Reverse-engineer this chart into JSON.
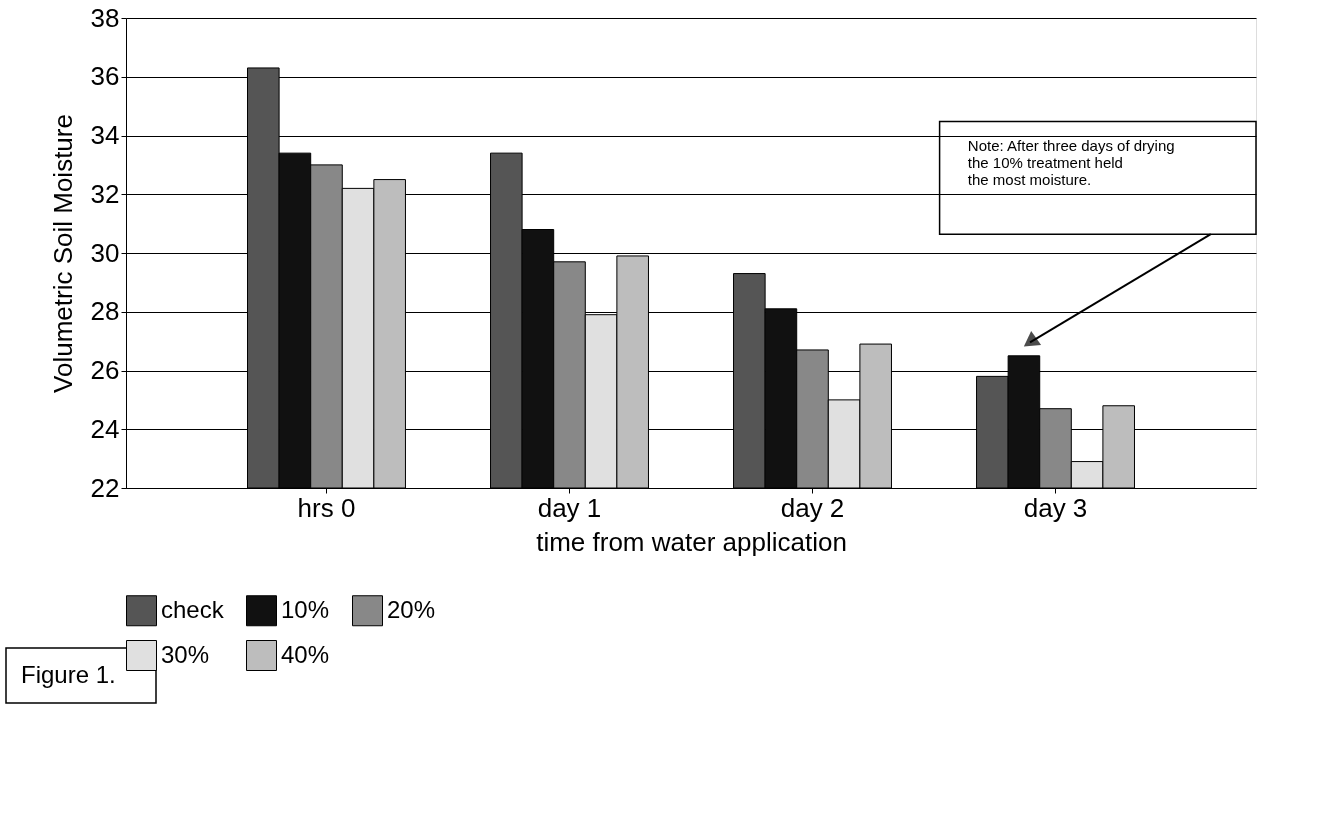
{
  "chart_data": {
    "type": "bar",
    "xlabel": "time from water application",
    "ylabel": "Volumetric Soil Moisture",
    "categories": [
      "hrs 0",
      "day 1",
      "day 2",
      "day 3"
    ],
    "series": [
      {
        "name": "check",
        "color": "#555555",
        "values": [
          36.3,
          33.4,
          29.3,
          25.8
        ]
      },
      {
        "name": "10%",
        "color": "#111111",
        "values": [
          33.4,
          30.8,
          28.1,
          26.5
        ]
      },
      {
        "name": "20%",
        "color": "#888888",
        "values": [
          33.0,
          29.7,
          26.7,
          24.7
        ]
      },
      {
        "name": "30%",
        "color": "#e0e0e0",
        "values": [
          32.2,
          27.9,
          25.0,
          22.9
        ]
      },
      {
        "name": "40%",
        "color": "#bdbdbd",
        "values": [
          32.5,
          29.9,
          26.9,
          24.8
        ]
      }
    ],
    "ylim": [
      22,
      38
    ],
    "yticks": [
      22,
      24,
      26,
      28,
      30,
      32,
      34,
      36,
      38
    ],
    "grid": "y",
    "legend": "bottom",
    "annotations": [
      "Note:  After three days of drying\nthe 10% treatment held\nthe most moisture.",
      "Figure 1."
    ]
  }
}
